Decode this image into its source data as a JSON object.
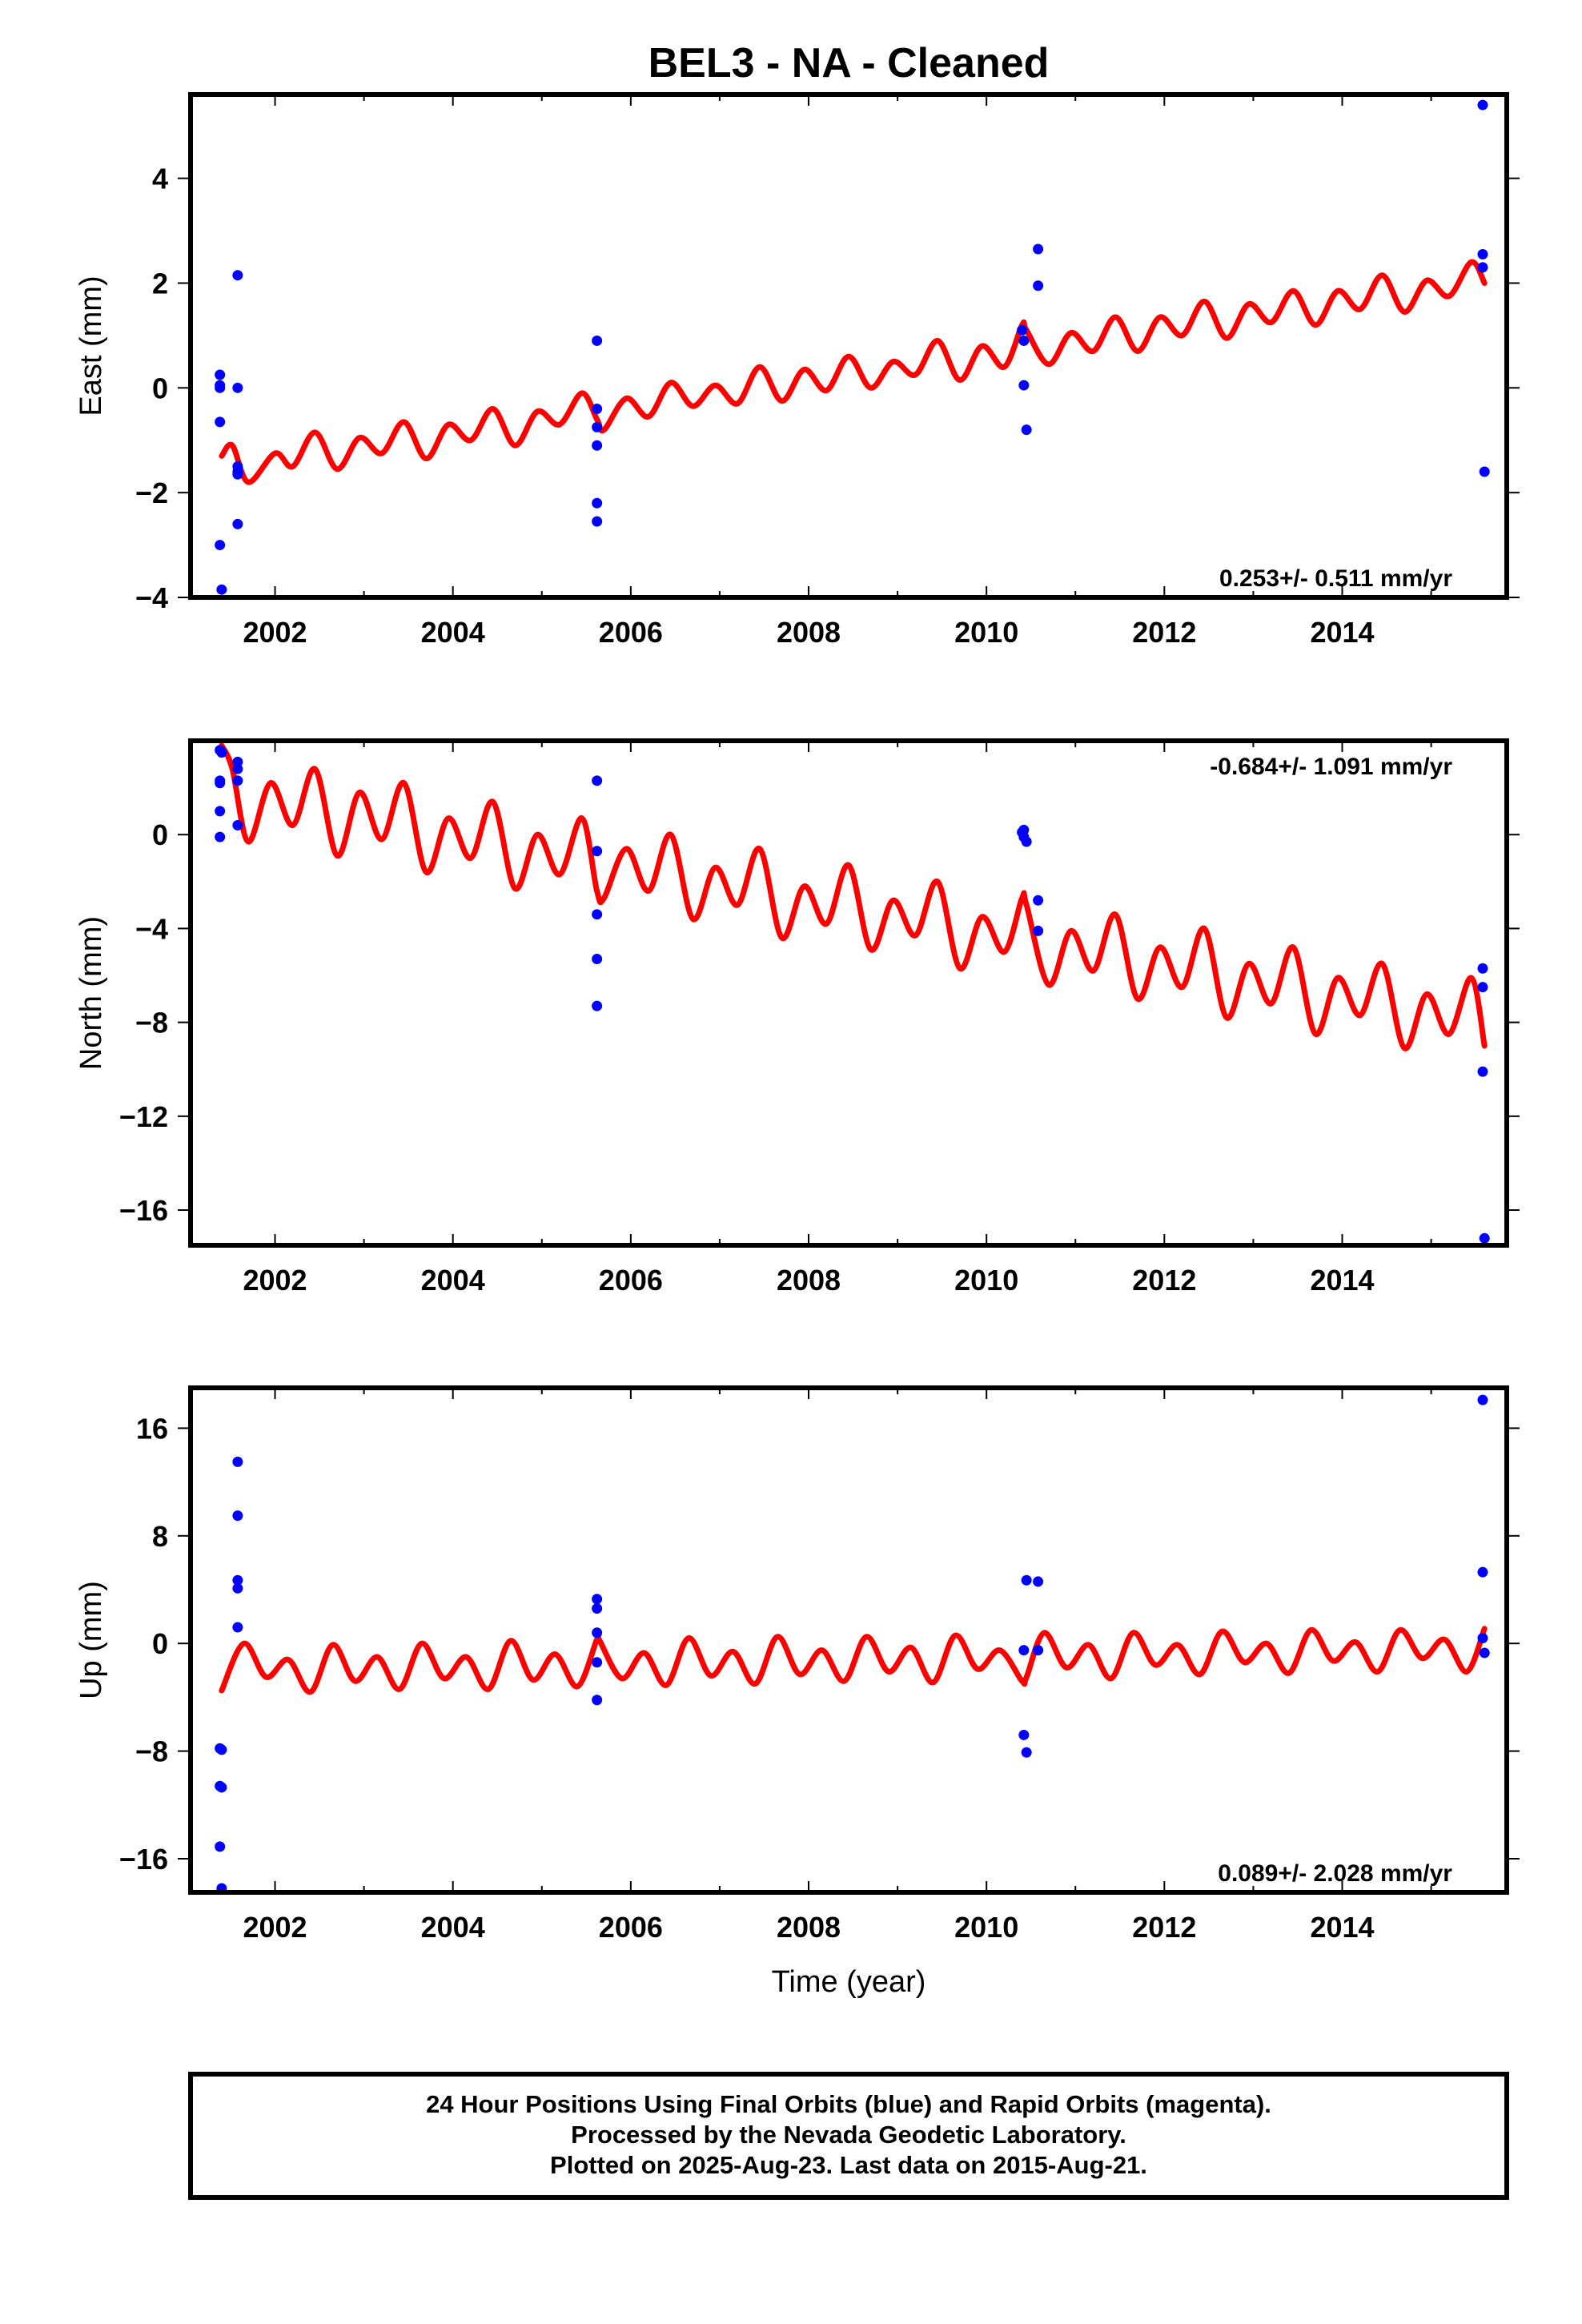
{
  "title": "BEL3  - NA - Cleaned",
  "colors": {
    "data_points": "#0000ff",
    "model_line": "#ff0000",
    "frame": "#000000"
  },
  "footer": {
    "lines": [
      "24 Hour Positions Using Final Orbits (blue) and Rapid Orbits (magenta).",
      "Processed by the Nevada Geodetic Laboratory.",
      "Plotted on 2025-Aug-23. Last data on 2015-Aug-21."
    ]
  },
  "chart_data": [
    {
      "type": "scatter",
      "ylabel": "East (mm)",
      "xlabel": "",
      "xlim": [
        2001.05,
        2015.85
      ],
      "ylim": [
        -4,
        5.6
      ],
      "xticks": [
        2002,
        2004,
        2006,
        2008,
        2010,
        2012,
        2014
      ],
      "yticks": [
        -4,
        -2,
        0,
        2,
        4
      ],
      "rate_label": "0.253+/- 0.511 mm/yr",
      "rate_position": "bottom-right",
      "points": {
        "x": [
          2001.38,
          2001.38,
          2001.38,
          2001.38,
          2001.38,
          2001.4,
          2001.58,
          2001.58,
          2001.58,
          2001.58,
          2001.58,
          2001.58,
          2005.62,
          2005.62,
          2005.62,
          2005.62,
          2005.62,
          2005.62,
          2010.4,
          2010.42,
          2010.42,
          2010.45,
          2010.58,
          2010.58,
          2015.58,
          2015.58,
          2015.58,
          2015.6
        ],
        "y": [
          0.25,
          0.05,
          0.0,
          -0.65,
          -3.0,
          -3.85,
          2.15,
          0.0,
          -1.5,
          -1.6,
          -1.65,
          -2.6,
          0.9,
          -0.4,
          -0.75,
          -1.1,
          -2.2,
          -2.55,
          1.1,
          0.9,
          0.05,
          -0.8,
          2.65,
          1.95,
          5.4,
          2.55,
          2.3,
          -1.6
        ]
      },
      "model": {
        "x": [
          2001.4,
          2001.52,
          2001.7,
          2002.0,
          2002.2,
          2002.45,
          2002.7,
          2002.95,
          2003.2,
          2003.45,
          2003.7,
          2003.95,
          2004.2,
          2004.45,
          2004.7,
          2004.95,
          2005.2,
          2005.45,
          2005.62,
          2005.7,
          2005.95,
          2006.2,
          2006.45,
          2006.7,
          2006.95,
          2007.2,
          2007.45,
          2007.7,
          2007.95,
          2008.2,
          2008.45,
          2008.7,
          2008.95,
          2009.2,
          2009.45,
          2009.7,
          2009.95,
          2010.2,
          2010.4,
          2010.45,
          2010.7,
          2010.95,
          2011.2,
          2011.45,
          2011.7,
          2011.95,
          2012.2,
          2012.45,
          2012.7,
          2012.95,
          2013.2,
          2013.45,
          2013.7,
          2013.95,
          2014.2,
          2014.45,
          2014.7,
          2014.95,
          2015.2,
          2015.45,
          2015.6
        ],
        "y": [
          -1.3,
          -1.1,
          -1.8,
          -1.25,
          -1.5,
          -0.85,
          -1.55,
          -0.95,
          -1.25,
          -0.65,
          -1.35,
          -0.7,
          -1.0,
          -0.4,
          -1.1,
          -0.45,
          -0.7,
          -0.1,
          -0.6,
          -0.8,
          -0.2,
          -0.55,
          0.1,
          -0.35,
          0.05,
          -0.3,
          0.4,
          -0.25,
          0.35,
          -0.05,
          0.6,
          0.0,
          0.5,
          0.25,
          0.9,
          0.15,
          0.8,
          0.4,
          1.2,
          1.1,
          0.45,
          1.05,
          0.7,
          1.35,
          0.7,
          1.35,
          1.0,
          1.65,
          0.95,
          1.6,
          1.25,
          1.85,
          1.2,
          1.85,
          1.5,
          2.15,
          1.45,
          2.05,
          1.75,
          2.4,
          2.0
        ]
      }
    },
    {
      "type": "scatter",
      "ylabel": "North (mm)",
      "xlabel": "",
      "xlim": [
        2001.05,
        2015.85
      ],
      "ylim": [
        -17.5,
        4.0
      ],
      "xticks": [
        2002,
        2004,
        2006,
        2008,
        2010,
        2012,
        2014
      ],
      "yticks": [
        -16,
        -12,
        -8,
        -4,
        0
      ],
      "rate_label": "-0.684+/- 1.091 mm/yr",
      "rate_position": "top-right",
      "points": {
        "x": [
          2001.38,
          2001.38,
          2001.38,
          2001.38,
          2001.38,
          2001.4,
          2001.58,
          2001.58,
          2001.58,
          2001.58,
          2005.62,
          2005.62,
          2005.62,
          2005.62,
          2005.62,
          2010.4,
          2010.42,
          2010.42,
          2010.45,
          2010.58,
          2010.58,
          2015.58,
          2015.58,
          2015.58,
          2015.6
        ],
        "y": [
          3.6,
          2.3,
          2.2,
          1.0,
          -0.1,
          3.5,
          3.1,
          2.8,
          2.3,
          0.4,
          2.3,
          -0.7,
          -3.4,
          -5.3,
          -7.3,
          0.1,
          -0.1,
          0.2,
          -0.3,
          -2.8,
          -4.1,
          -5.7,
          -6.5,
          -10.1,
          -17.2
        ]
      },
      "model": {
        "x": [
          2001.4,
          2001.52,
          2001.7,
          2001.95,
          2002.2,
          2002.45,
          2002.7,
          2002.95,
          2003.2,
          2003.45,
          2003.7,
          2003.95,
          2004.2,
          2004.45,
          2004.7,
          2004.95,
          2005.2,
          2005.45,
          2005.62,
          2005.7,
          2005.95,
          2006.2,
          2006.45,
          2006.7,
          2006.95,
          2007.2,
          2007.45,
          2007.7,
          2007.95,
          2008.2,
          2008.45,
          2008.7,
          2008.95,
          2009.2,
          2009.45,
          2009.7,
          2009.95,
          2010.2,
          2010.4,
          2010.45,
          2010.7,
          2010.95,
          2011.2,
          2011.45,
          2011.7,
          2011.95,
          2012.2,
          2012.45,
          2012.7,
          2012.95,
          2013.2,
          2013.45,
          2013.7,
          2013.95,
          2014.2,
          2014.45,
          2014.7,
          2014.95,
          2015.2,
          2015.45,
          2015.6
        ],
        "y": [
          3.8,
          2.8,
          -0.3,
          2.2,
          0.4,
          2.8,
          -0.9,
          1.8,
          -0.2,
          2.2,
          -1.6,
          0.7,
          -1.0,
          1.4,
          -2.3,
          0.0,
          -1.7,
          0.7,
          -2.4,
          -2.7,
          -0.6,
          -2.4,
          0.0,
          -3.6,
          -1.4,
          -3.0,
          -0.6,
          -4.4,
          -2.2,
          -3.8,
          -1.3,
          -4.9,
          -2.8,
          -4.3,
          -2.0,
          -5.7,
          -3.5,
          -5.0,
          -2.7,
          -3.0,
          -6.4,
          -4.1,
          -5.8,
          -3.4,
          -7.0,
          -4.8,
          -6.5,
          -4.0,
          -7.8,
          -5.5,
          -7.2,
          -4.8,
          -8.5,
          -6.1,
          -7.7,
          -5.5,
          -9.1,
          -6.8,
          -8.5,
          -6.1,
          -9.0
        ]
      }
    },
    {
      "type": "scatter",
      "ylabel": "Up (mm)",
      "xlabel": "Time (year)",
      "xlim": [
        2001.05,
        2015.85
      ],
      "ylim": [
        -18.5,
        19.0
      ],
      "xticks": [
        2002,
        2004,
        2006,
        2008,
        2010,
        2012,
        2014
      ],
      "yticks": [
        -16,
        -8,
        0,
        8,
        16
      ],
      "rate_label": "0.089+/- 2.028 mm/yr",
      "rate_position": "bottom-right",
      "points": {
        "x": [
          2001.38,
          2001.38,
          2001.38,
          2001.4,
          2001.4,
          2001.4,
          2001.58,
          2001.58,
          2001.58,
          2001.58,
          2001.58,
          2005.62,
          2005.62,
          2005.62,
          2005.62,
          2005.62,
          2010.42,
          2010.42,
          2010.45,
          2010.45,
          2010.58,
          2010.58,
          2015.58,
          2015.58,
          2015.58,
          2015.6
        ],
        "y": [
          -7.8,
          -10.6,
          -15.1,
          -18.2,
          -7.9,
          -10.7,
          13.5,
          9.5,
          4.7,
          4.1,
          1.2,
          3.3,
          2.6,
          0.8,
          -1.4,
          -4.2,
          -0.5,
          -6.8,
          -8.1,
          4.7,
          4.6,
          -0.5,
          18.1,
          5.3,
          0.4,
          -0.7
        ]
      },
      "model": {
        "x": [
          2001.4,
          2001.65,
          2001.9,
          2002.15,
          2002.4,
          2002.65,
          2002.9,
          2003.15,
          2003.4,
          2003.65,
          2003.9,
          2004.15,
          2004.4,
          2004.65,
          2004.9,
          2005.15,
          2005.4,
          2005.62,
          2005.65,
          2005.9,
          2006.15,
          2006.4,
          2006.65,
          2006.9,
          2007.15,
          2007.4,
          2007.65,
          2007.9,
          2008.15,
          2008.4,
          2008.65,
          2008.9,
          2009.15,
          2009.4,
          2009.65,
          2009.9,
          2010.15,
          2010.4,
          2010.45,
          2010.65,
          2010.9,
          2011.15,
          2011.4,
          2011.65,
          2011.9,
          2012.15,
          2012.4,
          2012.65,
          2012.9,
          2013.15,
          2013.4,
          2013.65,
          2013.9,
          2014.15,
          2014.4,
          2014.65,
          2014.9,
          2015.15,
          2015.4,
          2015.6
        ],
        "y": [
          -3.5,
          0.0,
          -2.5,
          -1.2,
          -3.6,
          -0.1,
          -2.8,
          -1.0,
          -3.4,
          0.0,
          -2.6,
          -1.0,
          -3.4,
          0.2,
          -2.7,
          -0.8,
          -3.2,
          0.3,
          0.2,
          -2.6,
          -0.7,
          -3.1,
          0.4,
          -2.4,
          -0.6,
          -3.0,
          0.5,
          -2.3,
          -0.5,
          -2.8,
          0.5,
          -2.1,
          -0.3,
          -2.9,
          0.6,
          -1.9,
          -0.5,
          -2.8,
          -2.5,
          0.8,
          -1.8,
          -0.1,
          -2.6,
          0.8,
          -1.6,
          -0.1,
          -2.3,
          0.9,
          -1.4,
          0.0,
          -2.2,
          1.0,
          -1.3,
          0.1,
          -2.1,
          1.0,
          -1.1,
          0.3,
          -2.1,
          1.1
        ]
      }
    }
  ]
}
